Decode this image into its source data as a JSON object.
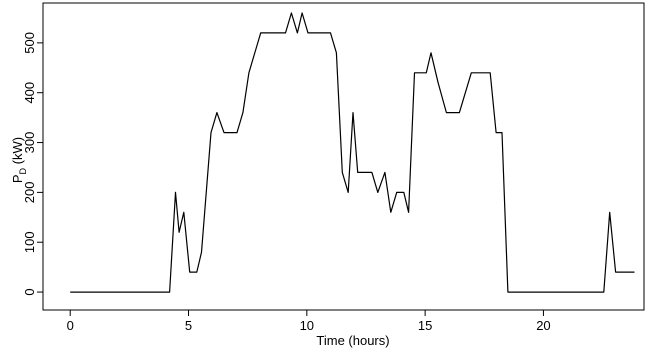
{
  "chart_data": {
    "type": "line",
    "xlabel": "Time (hours)",
    "ylabel": {
      "main": "P",
      "subscript": "D",
      "unit": " (kW)"
    },
    "xlim": [
      -1.15,
      24.25
    ],
    "ylim": [
      -36,
      580
    ],
    "x_ticks": [
      0,
      5,
      10,
      15,
      20
    ],
    "x_tick_labels": [
      "0",
      "5",
      "10",
      "15",
      "20"
    ],
    "y_ticks": [
      0,
      100,
      200,
      300,
      400,
      500
    ],
    "y_tick_labels": [
      "0",
      "100",
      "200",
      "300",
      "400",
      "500"
    ],
    "grid": false,
    "legend": "none",
    "series": [
      {
        "color": "#000000",
        "points": [
          [
            0,
            0
          ],
          [
            4.2,
            0
          ],
          [
            4.45,
            200
          ],
          [
            4.6,
            120
          ],
          [
            4.8,
            160
          ],
          [
            5.05,
            40
          ],
          [
            5.35,
            40
          ],
          [
            5.55,
            80
          ],
          [
            5.95,
            320
          ],
          [
            6.2,
            360
          ],
          [
            6.5,
            320
          ],
          [
            7.05,
            320
          ],
          [
            7.3,
            360
          ],
          [
            7.55,
            440
          ],
          [
            8.05,
            520
          ],
          [
            9.1,
            520
          ],
          [
            9.35,
            560
          ],
          [
            9.6,
            520
          ],
          [
            9.8,
            560
          ],
          [
            10.05,
            520
          ],
          [
            11.0,
            520
          ],
          [
            11.25,
            480
          ],
          [
            11.5,
            240
          ],
          [
            11.75,
            200
          ],
          [
            11.95,
            360
          ],
          [
            12.15,
            240
          ],
          [
            12.75,
            240
          ],
          [
            13.0,
            200
          ],
          [
            13.3,
            240
          ],
          [
            13.55,
            160
          ],
          [
            13.8,
            200
          ],
          [
            14.1,
            200
          ],
          [
            14.3,
            160
          ],
          [
            14.55,
            440
          ],
          [
            15.05,
            440
          ],
          [
            15.25,
            480
          ],
          [
            15.55,
            420
          ],
          [
            15.9,
            360
          ],
          [
            16.45,
            360
          ],
          [
            16.95,
            440
          ],
          [
            17.75,
            440
          ],
          [
            18.0,
            320
          ],
          [
            18.25,
            320
          ],
          [
            18.5,
            0
          ],
          [
            22.55,
            0
          ],
          [
            22.8,
            160
          ],
          [
            23.05,
            40
          ],
          [
            23.85,
            40
          ]
        ]
      }
    ]
  }
}
